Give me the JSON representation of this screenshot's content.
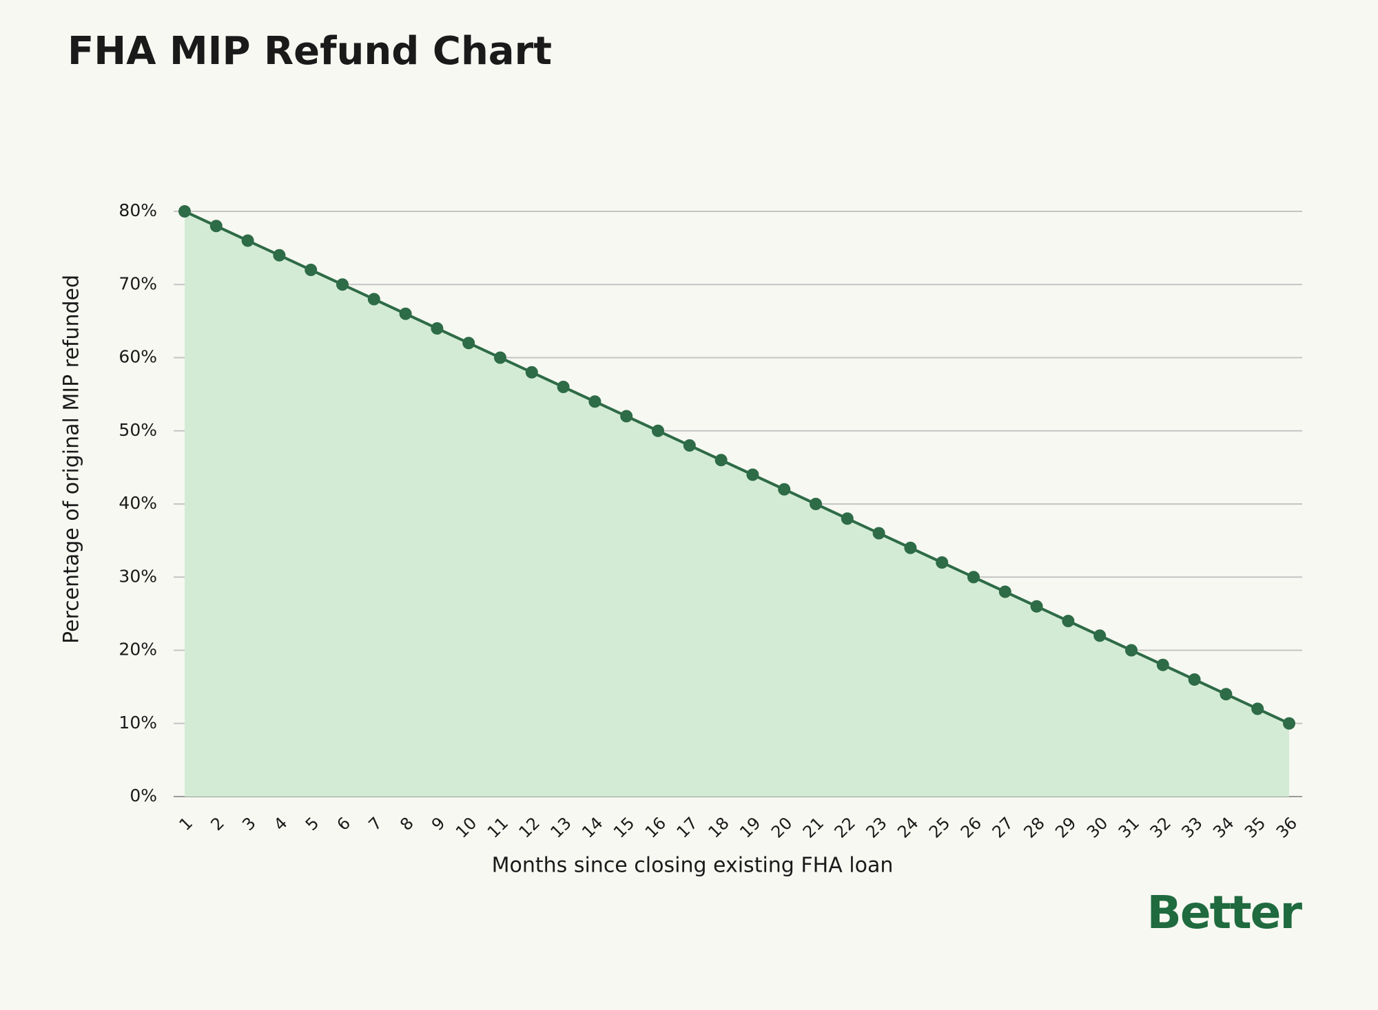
{
  "chart_data": {
    "type": "area",
    "title": "FHA MIP Refund Chart",
    "x_label": "Months since closing existing FHA loan",
    "y_label": "Percentage of original MIP refunded",
    "brand": "Better",
    "categories": [
      "1",
      "2",
      "3",
      "4",
      "5",
      "6",
      "7",
      "8",
      "9",
      "10",
      "11",
      "12",
      "13",
      "14",
      "15",
      "16",
      "17",
      "18",
      "19",
      "20",
      "21",
      "22",
      "23",
      "24",
      "25",
      "26",
      "27",
      "28",
      "29",
      "30",
      "31",
      "32",
      "33",
      "34",
      "35",
      "36"
    ],
    "values": [
      80,
      78,
      76,
      74,
      72,
      70,
      68,
      66,
      64,
      62,
      60,
      58,
      56,
      54,
      52,
      50,
      48,
      46,
      44,
      42,
      40,
      38,
      36,
      34,
      32,
      30,
      28,
      26,
      24,
      22,
      20,
      18,
      16,
      14,
      12,
      10
    ],
    "color": "#2e6b47",
    "fill_color": "#d3ebd4",
    "ylim": [
      0,
      80
    ],
    "yticks": [
      {
        "value": 0,
        "label": "0%"
      },
      {
        "value": 10,
        "label": "10%"
      },
      {
        "value": 20,
        "label": "20%"
      },
      {
        "value": 30,
        "label": "30%"
      },
      {
        "value": 40,
        "label": "40%"
      },
      {
        "value": 50,
        "label": "50%"
      },
      {
        "value": 60,
        "label": "60%"
      },
      {
        "value": 70,
        "label": "70%"
      },
      {
        "value": 80,
        "label": "80%"
      }
    ],
    "grid": true
  }
}
